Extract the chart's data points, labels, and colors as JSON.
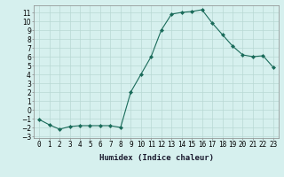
{
  "x": [
    0,
    1,
    2,
    3,
    4,
    5,
    6,
    7,
    8,
    9,
    10,
    11,
    12,
    13,
    14,
    15,
    16,
    17,
    18,
    19,
    20,
    21,
    22,
    23
  ],
  "y": [
    -1.1,
    -1.7,
    -2.2,
    -1.9,
    -1.8,
    -1.8,
    -1.8,
    -1.8,
    -2.0,
    2.0,
    4.0,
    6.0,
    9.0,
    10.8,
    11.0,
    11.1,
    11.3,
    9.8,
    8.5,
    7.2,
    6.2,
    6.0,
    6.1,
    4.8
  ],
  "line_color": "#1a6b5a",
  "marker": "D",
  "marker_size": 2.0,
  "bg_color": "#d6f0ee",
  "grid_color": "#b8d8d4",
  "xlabel": "Humidex (Indice chaleur)",
  "ylim": [
    -3.2,
    11.8
  ],
  "xlim": [
    -0.5,
    23.5
  ],
  "yticks": [
    -3,
    -2,
    -1,
    0,
    1,
    2,
    3,
    4,
    5,
    6,
    7,
    8,
    9,
    10,
    11
  ],
  "xticks": [
    0,
    1,
    2,
    3,
    4,
    5,
    6,
    7,
    8,
    9,
    10,
    11,
    12,
    13,
    14,
    15,
    16,
    17,
    18,
    19,
    20,
    21,
    22,
    23
  ],
  "xtick_labels": [
    "0",
    "1",
    "2",
    "3",
    "4",
    "5",
    "6",
    "7",
    "8",
    "9",
    "10",
    "11",
    "12",
    "13",
    "14",
    "15",
    "16",
    "17",
    "18",
    "19",
    "20",
    "21",
    "22",
    "23"
  ],
  "label_fontsize": 6.5,
  "tick_fontsize": 5.5
}
